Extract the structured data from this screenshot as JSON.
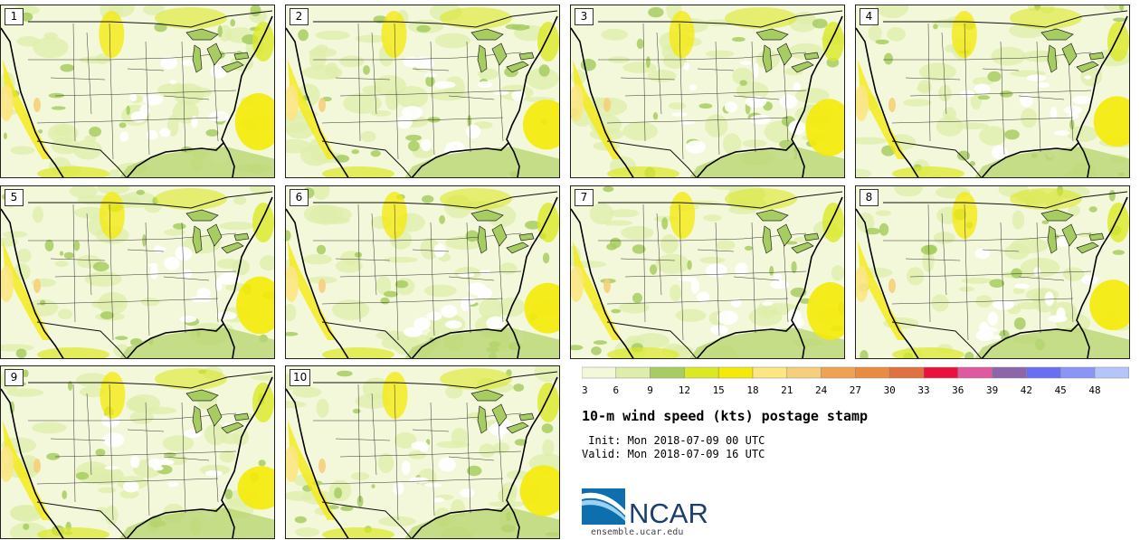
{
  "panels": [
    {
      "label": "1"
    },
    {
      "label": "2"
    },
    {
      "label": "3"
    },
    {
      "label": "4"
    },
    {
      "label": "5"
    },
    {
      "label": "6"
    },
    {
      "label": "7"
    },
    {
      "label": "8"
    },
    {
      "label": "9"
    },
    {
      "label": "10"
    }
  ],
  "colorbar": {
    "ticks": [
      "3",
      "6",
      "9",
      "12",
      "15",
      "18",
      "21",
      "24",
      "27",
      "30",
      "33",
      "36",
      "39",
      "42",
      "45",
      "48"
    ],
    "colors": [
      "#f4f8da",
      "#dfedac",
      "#a7cd62",
      "#dbe826",
      "#f5ea07",
      "#fbe682",
      "#f5cf7b",
      "#eea354",
      "#e88c41",
      "#de7240",
      "#e8133d",
      "#dd5aa0",
      "#8c66a8",
      "#6a6ef1",
      "#8b95f6",
      "#b4c6f9"
    ]
  },
  "title": "10-m wind speed (kts) postage stamp",
  "init_text": " Init: Mon 2018-07-09 00 UTC",
  "valid_text": "Valid: Mon 2018-07-09 16 UTC",
  "logo_text": "NCAR",
  "url": "ensemble.ucar.edu"
}
